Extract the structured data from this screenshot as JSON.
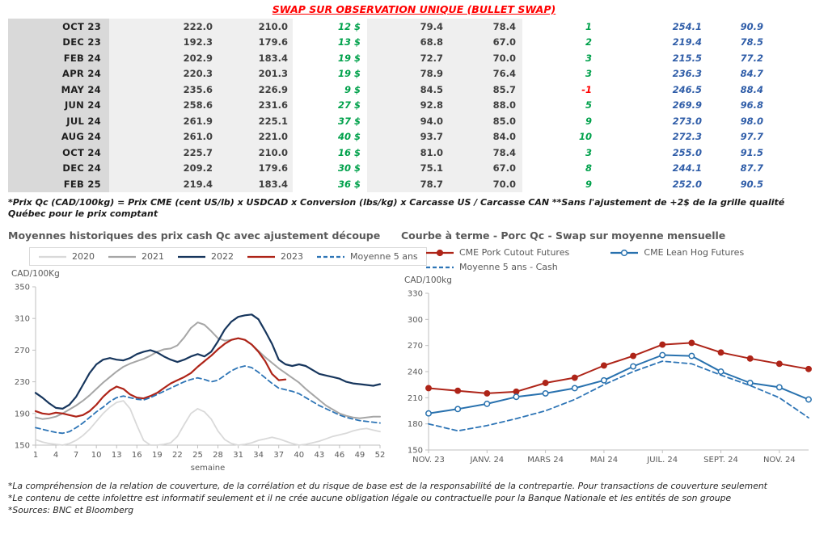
{
  "title": "SWAP SUR OBSERVATION UNIQUE (BULLET SWAP)",
  "table": {
    "rows": [
      [
        "OCT 23",
        "222.0",
        "210.0",
        "12 $",
        "79.4",
        "78.4",
        "1",
        "254.1",
        "90.9"
      ],
      [
        "DEC 23",
        "192.3",
        "179.6",
        "13 $",
        "68.8",
        "67.0",
        "2",
        "219.4",
        "78.5"
      ],
      [
        "FEB 24",
        "202.9",
        "183.4",
        "19 $",
        "72.7",
        "70.0",
        "3",
        "215.5",
        "77.2"
      ],
      [
        "APR 24",
        "220.3",
        "201.3",
        "19 $",
        "78.9",
        "76.4",
        "3",
        "236.3",
        "84.7"
      ],
      [
        "MAY 24",
        "235.6",
        "226.9",
        "9 $",
        "84.5",
        "85.7",
        "-1",
        "246.5",
        "88.4"
      ],
      [
        "JUN 24",
        "258.6",
        "231.6",
        "27 $",
        "92.8",
        "88.0",
        "5",
        "269.9",
        "96.8"
      ],
      [
        "JUL 24",
        "261.9",
        "225.1",
        "37 $",
        "94.0",
        "85.0",
        "9",
        "273.0",
        "98.0"
      ],
      [
        "AUG 24",
        "261.0",
        "221.0",
        "40 $",
        "93.7",
        "84.0",
        "10",
        "272.3",
        "97.7"
      ],
      [
        "OCT 24",
        "225.7",
        "210.0",
        "16 $",
        "81.0",
        "78.4",
        "3",
        "255.0",
        "91.5"
      ],
      [
        "DEC 24",
        "209.2",
        "179.6",
        "30 $",
        "75.1",
        "67.0",
        "8",
        "244.1",
        "87.7"
      ],
      [
        "FEB 25",
        "219.4",
        "183.4",
        "36 $",
        "78.7",
        "70.0",
        "9",
        "252.0",
        "90.5"
      ]
    ]
  },
  "table_footnote": "*Prix Qc (CAD/100kg) = Prix CME (cent US/lb) x USDCAD x Conversion (lbs/kg) x Carcasse US / Carcasse CAN **Sans l'ajustement de +2$ de la grille qualité Québec pour le prix comptant",
  "chart_data": [
    {
      "type": "line",
      "title": "Moyennes historiques des prix cash Qc avec ajustement découpe",
      "ylabel": "CAD/100Kg",
      "xlabel": "semaine",
      "ylim": [
        150,
        350
      ],
      "yticks": [
        150,
        190,
        230,
        270,
        310,
        350
      ],
      "xmin": 1,
      "xmax": 52,
      "xstep": 1,
      "xticks": [
        [
          1,
          "1"
        ],
        [
          4,
          "4"
        ],
        [
          7,
          "7"
        ],
        [
          10,
          "10"
        ],
        [
          13,
          "13"
        ],
        [
          16,
          "16"
        ],
        [
          19,
          "19"
        ],
        [
          22,
          "22"
        ],
        [
          25,
          "25"
        ],
        [
          28,
          "28"
        ],
        [
          31,
          "31"
        ],
        [
          34,
          "34"
        ],
        [
          37,
          "37"
        ],
        [
          40,
          "40"
        ],
        [
          43,
          "43"
        ],
        [
          46,
          "46"
        ],
        [
          49,
          "49"
        ],
        [
          52,
          "52"
        ]
      ],
      "series": [
        {
          "name": "2020",
          "color": "#d9d9d9",
          "w": 1.8,
          "values": [
            157,
            154,
            152,
            151,
            150,
            152,
            156,
            162,
            170,
            180,
            190,
            198,
            204,
            206,
            196,
            175,
            156,
            150,
            150,
            151,
            153,
            161,
            176,
            190,
            196,
            192,
            183,
            168,
            157,
            152,
            150,
            151,
            153,
            156,
            158,
            160,
            158,
            155,
            152,
            150,
            151,
            153,
            155,
            158,
            161,
            163,
            165,
            168,
            170,
            171,
            169,
            167
          ]
        },
        {
          "name": "2021",
          "color": "#a6a6a6",
          "w": 2,
          "values": [
            185,
            183,
            184,
            186,
            190,
            195,
            200,
            206,
            213,
            221,
            229,
            236,
            243,
            249,
            253,
            256,
            259,
            263,
            268,
            271,
            272,
            276,
            286,
            298,
            305,
            302,
            294,
            285,
            282,
            283,
            285,
            283,
            277,
            269,
            261,
            254,
            247,
            241,
            235,
            229,
            221,
            214,
            207,
            200,
            195,
            190,
            187,
            185,
            184,
            185,
            186,
            186
          ]
        },
        {
          "name": "2022",
          "color": "#17365d",
          "w": 2.2,
          "values": [
            216,
            210,
            203,
            197,
            196,
            201,
            211,
            226,
            241,
            252,
            258,
            260,
            258,
            257,
            260,
            265,
            268,
            270,
            267,
            262,
            258,
            255,
            258,
            262,
            265,
            262,
            268,
            281,
            296,
            306,
            312,
            314,
            315,
            309,
            294,
            278,
            258,
            252,
            250,
            252,
            250,
            245,
            240,
            238,
            236,
            234,
            230,
            228,
            227,
            226,
            225,
            227
          ]
        },
        {
          "name": "2023",
          "color": "#ae2418",
          "w": 2.2,
          "values": [
            193,
            190,
            189,
            191,
            190,
            188,
            186,
            188,
            193,
            201,
            211,
            219,
            224,
            221,
            214,
            210,
            209,
            212,
            216,
            222,
            228,
            232,
            236,
            241,
            249,
            256,
            263,
            271,
            278,
            283,
            285,
            283,
            277,
            268,
            256,
            240,
            232,
            233
          ]
        },
        {
          "name": "Moyenne 5 ans",
          "color": "#2e75b6",
          "w": 1.8,
          "dash": true,
          "values": [
            172,
            170,
            168,
            166,
            165,
            167,
            172,
            178,
            185,
            192,
            198,
            205,
            210,
            212,
            210,
            208,
            207,
            210,
            214,
            218,
            222,
            226,
            230,
            233,
            235,
            233,
            230,
            232,
            238,
            244,
            248,
            250,
            248,
            242,
            235,
            228,
            222,
            220,
            218,
            215,
            210,
            205,
            200,
            196,
            192,
            188,
            185,
            183,
            181,
            180,
            179,
            178
          ]
        }
      ]
    },
    {
      "type": "line",
      "title": "Courbe à terme - Porc Qc - Swap sur moyenne mensuelle",
      "ylabel": "CAD/100kg",
      "xlabel": "",
      "ylim": [
        150,
        330
      ],
      "yticks": [
        150,
        180,
        210,
        240,
        270,
        300,
        330
      ],
      "xmin": 0,
      "xmax": 13,
      "xstep": 1,
      "xticks": [
        [
          0,
          "NOV. 23"
        ],
        [
          2,
          "JANV. 24"
        ],
        [
          4,
          "MARS 24"
        ],
        [
          6,
          "MAI 24"
        ],
        [
          8,
          "JUIL. 24"
        ],
        [
          10,
          "SEPT. 24"
        ],
        [
          12,
          "NOV. 24"
        ]
      ],
      "series": [
        {
          "name": "CME Pork Cutout Futures",
          "color": "#ae2418",
          "w": 2,
          "marker": "dot",
          "values": [
            221,
            218,
            215,
            217,
            227,
            233,
            247,
            258,
            271,
            273,
            262,
            255,
            249,
            243
          ]
        },
        {
          "name": "CME Lean Hog Futures",
          "color": "#2871ae",
          "w": 2,
          "marker": "open",
          "values": [
            192,
            197,
            203,
            211,
            215,
            221,
            230,
            246,
            259,
            258,
            240,
            227,
            222,
            208
          ]
        },
        {
          "name": "Moyenne 5 ans - Cash",
          "color": "#2e75b6",
          "w": 1.8,
          "dash": true,
          "values": [
            180,
            172,
            178,
            186,
            195,
            208,
            225,
            240,
            252,
            249,
            236,
            224,
            210,
            187
          ]
        }
      ]
    }
  ],
  "footnotes": [
    "*La compréhension de la relation de couverture, de la corrélation et du risque de base est de la responsabilité de la contrepartie. Pour transactions de couverture seulement",
    "*Le contenu de cette infolettre est informatif seulement et il ne crée aucune obligation légale ou contractuelle pour la Banque Nationale et les entités de son groupe",
    "*Sources: BNC et Bloomberg"
  ]
}
